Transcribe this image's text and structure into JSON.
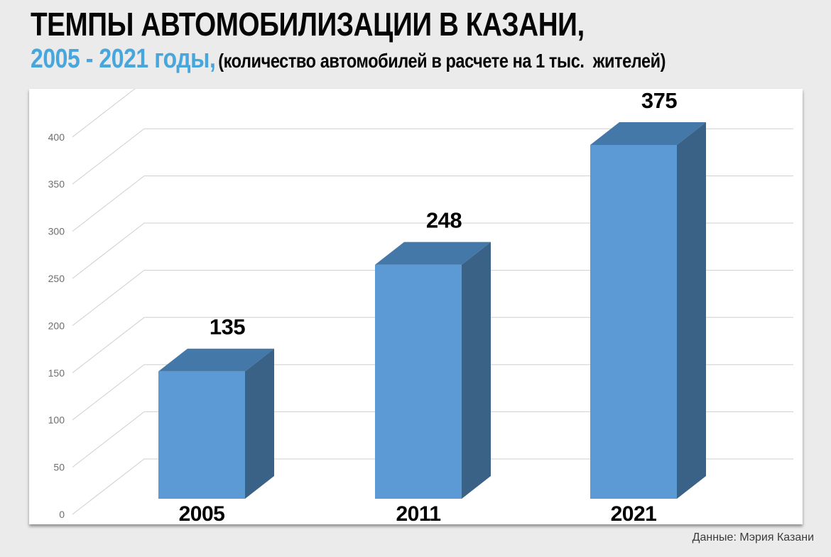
{
  "page": {
    "background": "#EBEBEB",
    "panel_background": "#FFFFFF"
  },
  "header": {
    "title": "ТЕМПЫ АВТОМОБИЛИЗАЦИИ В КАЗАНИ,",
    "subtitle_years": "2005 - 2021 годы,",
    "subtitle_years_color": "#47A7DD",
    "subtitle_note": "(количество автомобилей в расчете на 1 тыс.  жителей)"
  },
  "footer": {
    "source": "Данные: Мэрия Казани"
  },
  "chart_data": {
    "type": "bar",
    "style": "3d-column",
    "title": "ТЕМПЫ АВТОМОБИЛИЗАЦИИ В КАЗАНИ, 2005 - 2021 годы",
    "subtitle": "(количество автомобилей в расчете на 1 тыс.  жителей)",
    "categories": [
      "2005",
      "2011",
      "2021"
    ],
    "values": [
      135,
      248,
      375
    ],
    "value_labels": [
      "135",
      "248",
      "375"
    ],
    "xlabel": "",
    "ylabel": "",
    "ylim": [
      0,
      400
    ],
    "ytick_step": 50,
    "yticks": [
      0,
      50,
      100,
      150,
      200,
      250,
      300,
      350,
      400
    ],
    "grid": true,
    "legend": false,
    "source": "Данные: Мэрия Казани",
    "colors": {
      "bar_front": "#5B9AD5",
      "bar_top": "#4478A9",
      "bar_side": "#3A6286",
      "grid": "#CFCFCF",
      "tick_label": "#6E6E6E",
      "value_label": "#000000",
      "category_label": "#000000"
    }
  }
}
